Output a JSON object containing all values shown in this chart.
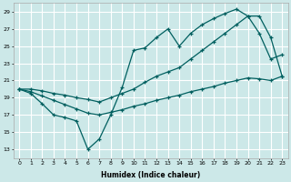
{
  "xlabel": "Humidex (Indice chaleur)",
  "bg_color": "#cce8e8",
  "grid_color": "#ffffff",
  "line_color": "#005f5f",
  "xlim": [
    -0.5,
    23.5
  ],
  "ylim": [
    12,
    30
  ],
  "xticks": [
    0,
    1,
    2,
    3,
    4,
    5,
    6,
    7,
    8,
    9,
    10,
    11,
    12,
    13,
    14,
    15,
    16,
    17,
    18,
    19,
    20,
    21,
    22,
    23
  ],
  "yticks": [
    13,
    15,
    17,
    19,
    21,
    23,
    25,
    27,
    29
  ],
  "lineA_x": [
    0,
    1,
    2,
    3,
    4,
    5,
    6,
    7,
    8,
    9,
    10,
    11,
    12,
    13,
    14,
    15,
    16,
    17,
    18,
    19,
    20,
    21,
    22,
    23
  ],
  "lineA_y": [
    20.0,
    20.0,
    19.8,
    19.5,
    19.3,
    19.0,
    18.8,
    18.5,
    19.0,
    19.5,
    20.0,
    20.8,
    21.5,
    22.0,
    22.5,
    23.5,
    24.5,
    25.5,
    26.5,
    27.5,
    28.5,
    28.5,
    26.0,
    21.5
  ],
  "lineB_x": [
    0,
    1,
    2,
    3,
    4,
    5,
    6,
    7,
    8,
    9,
    10,
    11,
    12,
    13,
    14,
    15,
    16,
    17,
    18,
    19,
    20,
    21,
    22,
    23
  ],
  "lineB_y": [
    20.0,
    19.5,
    18.3,
    17.0,
    16.7,
    16.3,
    13.0,
    14.2,
    17.0,
    20.2,
    24.5,
    24.8,
    26.0,
    27.0,
    25.0,
    26.5,
    27.5,
    28.2,
    28.8,
    29.3,
    28.5,
    26.5,
    23.5,
    24.0
  ],
  "lineC_x": [
    0,
    1,
    2,
    3,
    4,
    5,
    6,
    7,
    8,
    9,
    10,
    11,
    12,
    13,
    14,
    15,
    16,
    17,
    18,
    19,
    20,
    21,
    22,
    23
  ],
  "lineC_y": [
    20.0,
    19.7,
    19.2,
    18.7,
    18.2,
    17.7,
    17.2,
    17.0,
    17.3,
    17.6,
    18.0,
    18.3,
    18.7,
    19.0,
    19.3,
    19.7,
    20.0,
    20.3,
    20.7,
    21.0,
    21.3,
    21.2,
    21.0,
    21.5
  ]
}
